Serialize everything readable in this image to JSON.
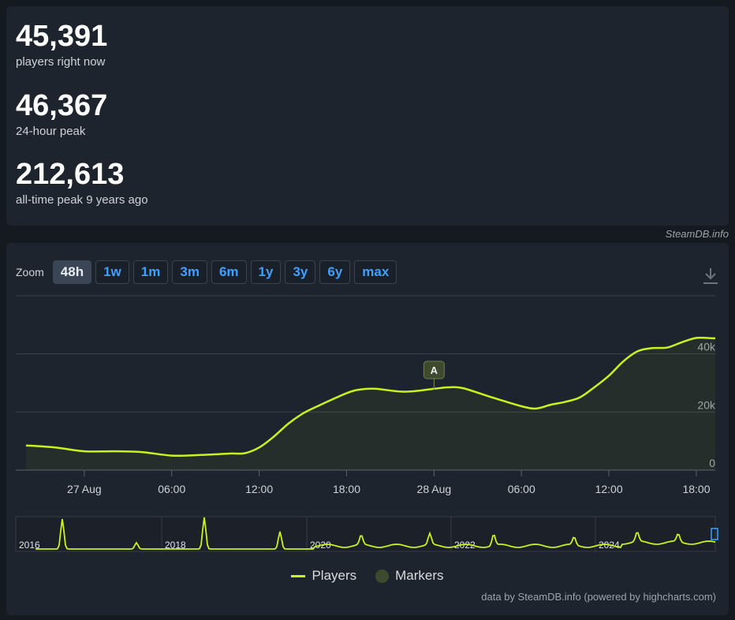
{
  "stats": [
    {
      "value": "45,391",
      "label": "players right now"
    },
    {
      "value": "46,367",
      "label": "24-hour peak"
    },
    {
      "value": "212,613",
      "label": "all-time peak 9 years ago"
    }
  ],
  "credit_top": "SteamDB.info",
  "zoom": {
    "label": "Zoom",
    "buttons": [
      "48h",
      "1w",
      "1m",
      "3m",
      "6m",
      "1y",
      "3y",
      "6y",
      "max"
    ],
    "active": "48h"
  },
  "download_icon": "download-icon",
  "colors": {
    "line": "#c9f31d",
    "marker": "#3e4a2e",
    "active_zoom": "#3a4656",
    "link": "#3fa0ff"
  },
  "chart_data": {
    "type": "line",
    "series": [
      {
        "name": "Players",
        "x": [
          "26 Aug 20:00",
          "26 Aug 22:00",
          "27 Aug 00:00",
          "27 Aug 02:00",
          "27 Aug 04:00",
          "27 Aug 06:00",
          "27 Aug 08:00",
          "27 Aug 10:00",
          "27 Aug 11:00",
          "27 Aug 12:00",
          "27 Aug 13:00",
          "27 Aug 14:00",
          "27 Aug 15:00",
          "27 Aug 16:00",
          "27 Aug 18:00",
          "27 Aug 19:00",
          "27 Aug 20:00",
          "27 Aug 22:00",
          "28 Aug 00:00",
          "28 Aug 01:00",
          "28 Aug 02:00",
          "28 Aug 04:00",
          "28 Aug 06:00",
          "28 Aug 07:00",
          "28 Aug 08:00",
          "28 Aug 09:00",
          "28 Aug 10:00",
          "28 Aug 11:00",
          "28 Aug 12:00",
          "28 Aug 13:00",
          "28 Aug 14:00",
          "28 Aug 15:00",
          "28 Aug 16:00",
          "28 Aug 17:00",
          "28 Aug 18:00",
          "28 Aug 19:00"
        ],
        "values": [
          8500,
          7800,
          6500,
          6500,
          6200,
          5000,
          5200,
          5700,
          5800,
          7800,
          11500,
          16000,
          19500,
          22000,
          26500,
          27800,
          28000,
          27000,
          28000,
          28500,
          28200,
          25000,
          22000,
          21200,
          22500,
          23500,
          25000,
          28500,
          32500,
          37500,
          41000,
          42000,
          42200,
          44000,
          45500,
          45391
        ]
      }
    ],
    "markers": [
      {
        "label": "A",
        "x": "28 Aug 00:00"
      }
    ],
    "xticks": [
      "27 Aug",
      "06:00",
      "12:00",
      "18:00",
      "28 Aug",
      "06:00",
      "12:00",
      "18:00"
    ],
    "yticks": [
      "0",
      "20k",
      "40k"
    ],
    "ylim": [
      0,
      60000
    ],
    "grid": true,
    "navigator": {
      "year_labels": [
        "2016",
        "2018",
        "2020",
        "2022",
        "2024"
      ]
    },
    "legend": {
      "position": "bottom-center",
      "items": [
        "Players",
        "Markers"
      ]
    }
  },
  "credit_bottom": "data by SteamDB.info (powered by highcharts.com)"
}
